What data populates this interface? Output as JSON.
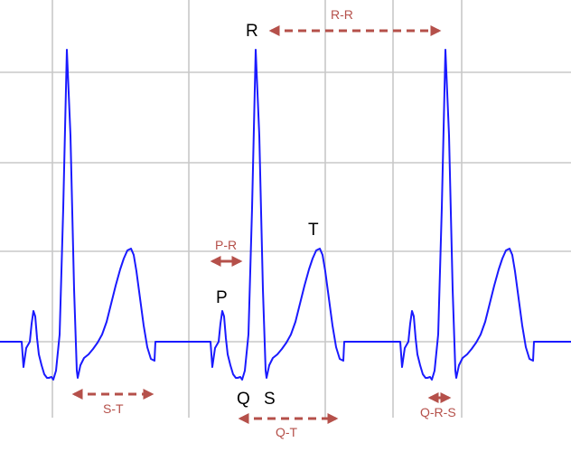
{
  "wave_labels": {
    "p": "P",
    "q": "Q",
    "r": "R",
    "s": "S",
    "t": "T"
  },
  "interval_labels": {
    "rr": "R-R",
    "pr": "P-R",
    "st": "S-T",
    "qt": "Q-T",
    "qrs": "Q-R-S"
  },
  "colors": {
    "trace": "#1a1aff",
    "grid": "#c8c8c8",
    "interval": "#b5504a",
    "wave_label": "#000000"
  }
}
